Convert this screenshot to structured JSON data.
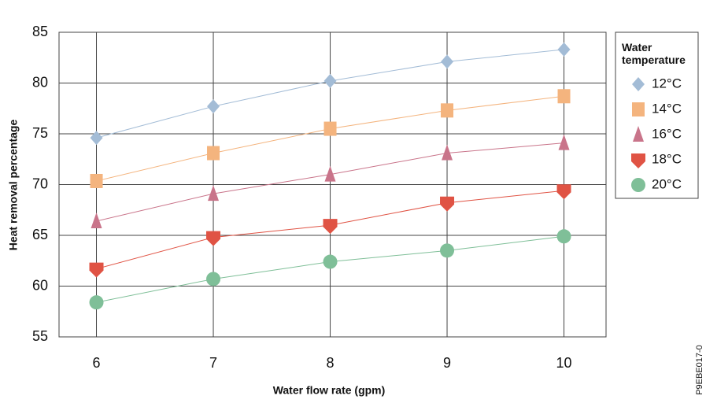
{
  "chart_data": {
    "type": "line",
    "x_label": "Water flow rate (gpm)",
    "y_label": "Heat removal percentage",
    "legend_title": "Water temperature",
    "legend_position": "right",
    "figure_id": "P9EBE017-0",
    "x": [
      6,
      7,
      8,
      9,
      10
    ],
    "xlim": [
      5.68,
      10.36
    ],
    "xticks": [
      6,
      7,
      8,
      9,
      10
    ],
    "ylim": [
      55,
      85
    ],
    "yticks": [
      55,
      60,
      65,
      70,
      75,
      80,
      85
    ],
    "grid": true,
    "series": [
      {
        "name": "12°C",
        "color": "#a3bcd6",
        "marker": "diamond",
        "values": [
          74.6,
          77.7,
          80.2,
          82.1,
          83.3
        ]
      },
      {
        "name": "14°C",
        "color": "#f4b47e",
        "marker": "square",
        "values": [
          70.35,
          73.1,
          75.5,
          77.3,
          78.7
        ]
      },
      {
        "name": "16°C",
        "color": "#c9748a",
        "marker": "triangle",
        "values": [
          66.4,
          69.1,
          71.0,
          73.1,
          74.1
        ]
      },
      {
        "name": "18°C",
        "color": "#e05344",
        "marker": "shield",
        "values": [
          61.7,
          64.8,
          66.0,
          68.2,
          69.4
        ]
      },
      {
        "name": "20°C",
        "color": "#7fbf98",
        "marker": "circle",
        "values": [
          58.4,
          60.7,
          62.4,
          63.5,
          64.9
        ]
      }
    ]
  }
}
